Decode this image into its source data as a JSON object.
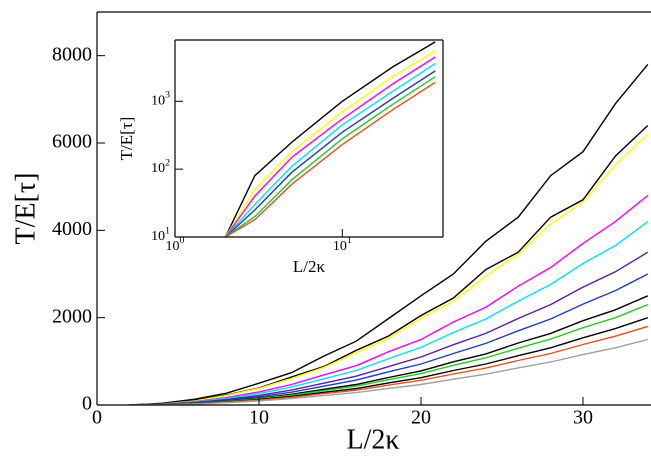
{
  "chart_data": [
    {
      "type": "line",
      "x_label": "L/2κ",
      "y_label": "T/E[τ]",
      "x": [
        2,
        4,
        6,
        8,
        10,
        12,
        14,
        16,
        18,
        20,
        22,
        24,
        26,
        28,
        30,
        32,
        34
      ],
      "xlim": [
        0,
        34.2
      ],
      "ylim": [
        0,
        9000
      ],
      "xticks": [
        0,
        10,
        20,
        30
      ],
      "yticks": [
        0,
        2000,
        4000,
        6000,
        8000
      ],
      "series": [
        {
          "color": "#000000",
          "values": [
            0,
            40,
            130,
            270,
            500,
            740,
            1120,
            1460,
            1980,
            2500,
            3000,
            3750,
            4300,
            5250,
            5800,
            6900,
            7800
          ]
        },
        {
          "color": "#000000",
          "values": [
            0,
            25,
            100,
            230,
            390,
            640,
            880,
            1250,
            1580,
            2050,
            2450,
            3100,
            3500,
            4300,
            4700,
            5700,
            6400
          ]
        },
        {
          "color": "#ffff00",
          "values": [
            0,
            20,
            90,
            220,
            380,
            610,
            860,
            1200,
            1530,
            1990,
            2380,
            2950,
            3450,
            4150,
            4650,
            5500,
            6200
          ]
        },
        {
          "color": "#ff00ff",
          "values": [
            0,
            19,
            75,
            169,
            300,
            469,
            690,
            900,
            1220,
            1500,
            1900,
            2240,
            2720,
            3150,
            3700,
            4200,
            4800
          ]
        },
        {
          "color": "#00e5ee",
          "values": [
            0,
            16,
            66,
            148,
            263,
            410,
            600,
            790,
            1060,
            1320,
            1660,
            1970,
            2380,
            2760,
            3240,
            3650,
            4200
          ]
        },
        {
          "color": "#5a1ea0",
          "values": [
            0,
            14,
            55,
            123,
            219,
            342,
            500,
            660,
            880,
            1100,
            1380,
            1640,
            1980,
            2300,
            2700,
            3050,
            3500
          ]
        },
        {
          "color": "#1e3cc8",
          "values": [
            0,
            12,
            47,
            106,
            188,
            293,
            430,
            570,
            760,
            940,
            1180,
            1410,
            1700,
            1970,
            2310,
            2620,
            3000
          ]
        },
        {
          "color": "#000000",
          "values": [
            0,
            10,
            39,
            88,
            156,
            244,
            360,
            470,
            630,
            780,
            990,
            1170,
            1420,
            1640,
            1930,
            2180,
            2500
          ]
        },
        {
          "color": "#22cc22",
          "values": [
            0,
            9,
            36,
            81,
            144,
            225,
            330,
            430,
            580,
            720,
            910,
            1080,
            1300,
            1510,
            1770,
            2000,
            2300
          ]
        },
        {
          "color": "#000000",
          "values": [
            0,
            8,
            31,
            70,
            125,
            195,
            290,
            375,
            505,
            625,
            790,
            940,
            1130,
            1310,
            1540,
            1750,
            2000
          ]
        },
        {
          "color": "#e8501e",
          "values": [
            0,
            7,
            28,
            63,
            113,
            176,
            260,
            340,
            455,
            565,
            710,
            845,
            1020,
            1180,
            1385,
            1575,
            1800
          ]
        },
        {
          "color": "#a0a0a0",
          "values": [
            0,
            6,
            23,
            53,
            94,
            147,
            215,
            285,
            380,
            470,
            590,
            705,
            850,
            985,
            1155,
            1310,
            1500
          ]
        }
      ]
    },
    {
      "type": "line",
      "x_label": "L/2κ",
      "y_label": "T/E[τ]",
      "log_x": true,
      "log_y": true,
      "x": [
        2,
        3,
        5,
        10,
        20,
        36
      ],
      "xlim": [
        1,
        40
      ],
      "ylim": [
        10,
        8000
      ],
      "xticks": [
        {
          "value": 1,
          "label": "10",
          "exponent": "0"
        },
        {
          "value": 10,
          "label": "10",
          "exponent": "1"
        }
      ],
      "yticks": [
        {
          "value": 10,
          "label": "10",
          "exponent": "1"
        },
        {
          "value": 100,
          "label": "10",
          "exponent": "2"
        },
        {
          "value": 1000,
          "label": "10",
          "exponent": "3"
        }
      ],
      "series": [
        {
          "color": "#000000",
          "values": [
            10,
            80,
            250,
            1000,
            3200,
            7500
          ]
        },
        {
          "color": "#ffff00",
          "values": [
            10,
            50,
            180,
            700,
            2300,
            5500
          ]
        },
        {
          "color": "#ff00ff",
          "values": [
            10,
            40,
            150,
            550,
            1800,
            4500
          ]
        },
        {
          "color": "#00e5ee",
          "values": [
            10,
            30,
            110,
            450,
            1400,
            3600
          ]
        },
        {
          "color": "#1e3cc8",
          "values": [
            10,
            25,
            90,
            350,
            1100,
            2800
          ]
        },
        {
          "color": "#22cc22",
          "values": [
            10,
            20,
            70,
            280,
            900,
            2300
          ]
        },
        {
          "color": "#e8501e",
          "values": [
            10,
            18,
            60,
            230,
            750,
            1900
          ]
        }
      ]
    }
  ]
}
